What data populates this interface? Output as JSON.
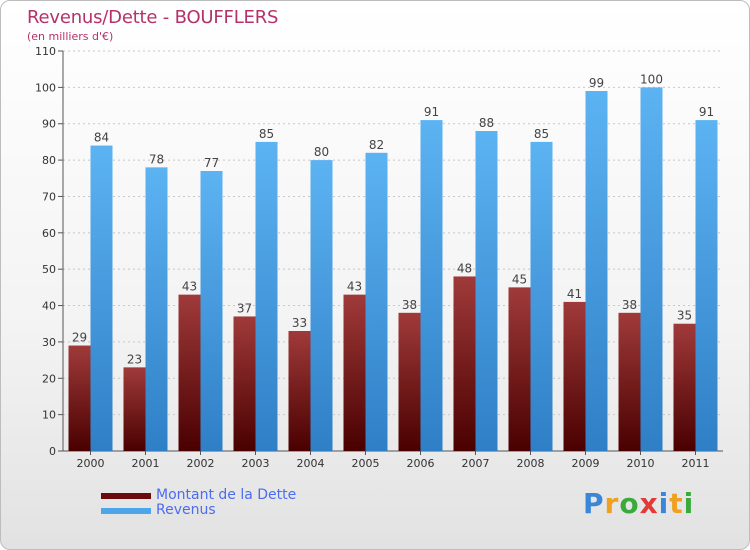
{
  "header": {
    "title": "Revenus/Dette - BOUFFLERS",
    "subtitle": "(en milliers d'€)"
  },
  "legend": {
    "items": [
      {
        "label": "Montant de la Dette",
        "color": "#6b0a0a"
      },
      {
        "label": "Revenus",
        "color": "#4da6ea"
      }
    ]
  },
  "logo": {
    "letters": [
      "P",
      "r",
      "o",
      "x",
      "i",
      "t",
      "i"
    ],
    "colors": [
      "#3a86d8",
      "#f0a020",
      "#3aaa3a",
      "#e03a3a",
      "#3a86d8",
      "#f0a020",
      "#3aaa3a"
    ]
  },
  "chart_data": {
    "type": "bar",
    "title": "Revenus/Dette - BOUFFLERS",
    "subtitle": "(en milliers d'€)",
    "categories": [
      "2000",
      "2001",
      "2002",
      "2003",
      "2004",
      "2005",
      "2006",
      "2007",
      "2008",
      "2009",
      "2010",
      "2011"
    ],
    "series": [
      {
        "name": "Montant de la Dette",
        "color": "#6b0a0a",
        "values": [
          29,
          23,
          43,
          37,
          33,
          43,
          38,
          48,
          45,
          41,
          38,
          35
        ]
      },
      {
        "name": "Revenus",
        "color": "#4da6ea",
        "values": [
          84,
          78,
          77,
          85,
          80,
          82,
          91,
          88,
          85,
          99,
          100,
          91
        ]
      }
    ],
    "yticks": [
      0,
      10,
      20,
      30,
      40,
      50,
      60,
      70,
      80,
      90,
      100,
      110
    ],
    "ylim": [
      0,
      110
    ],
    "grid": true,
    "legend_position": "bottom-left"
  }
}
